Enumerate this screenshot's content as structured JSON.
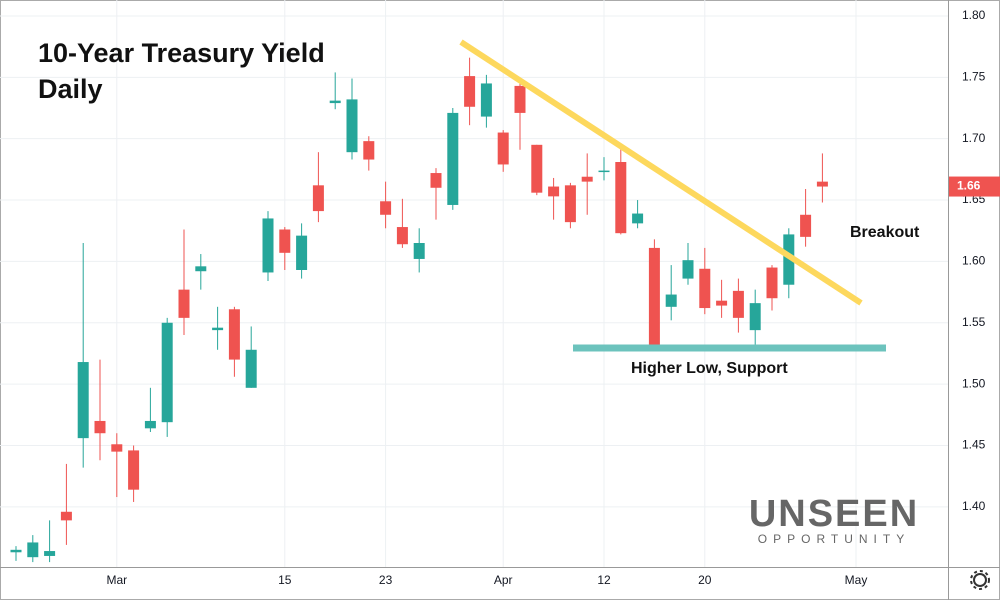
{
  "chart_data": {
    "type": "candlestick",
    "title": "10-Year Treasury Yield",
    "subtitle": "Daily",
    "annotations": [
      "Breakout",
      "Higher Low, Support"
    ],
    "last_label": "1.66",
    "up_color": "#26a69a",
    "down_color": "#ef5350",
    "grid": true,
    "categories": [
      null,
      null,
      null,
      null,
      null,
      null,
      "Mar",
      null,
      null,
      null,
      null,
      null,
      null,
      null,
      null,
      null,
      "15",
      null,
      null,
      null,
      null,
      null,
      "23",
      null,
      null,
      null,
      null,
      null,
      null,
      "Apr",
      null,
      null,
      null,
      null,
      null,
      "12",
      null,
      null,
      null,
      null,
      null,
      "20",
      null,
      null,
      null,
      null,
      null,
      null,
      null,
      null,
      "May"
    ],
    "open": [
      1.363,
      1.359,
      1.36,
      1.396,
      1.456,
      1.47,
      1.451,
      1.446,
      1.464,
      1.469,
      1.577,
      1.592,
      1.544,
      1.561,
      1.497,
      1.591,
      1.626,
      1.593,
      1.662,
      1.729,
      1.689,
      1.698,
      1.649,
      1.628,
      1.602,
      1.672,
      1.646,
      1.751,
      1.718,
      1.705,
      1.743,
      1.695,
      1.661,
      1.662,
      1.669,
      1.673,
      1.681,
      1.631,
      1.611,
      1.563,
      1.586,
      1.594,
      1.568,
      1.576,
      1.544,
      1.595,
      1.581,
      1.638,
      1.665,
      null,
      null
    ],
    "high": [
      1.368,
      1.377,
      1.389,
      1.435,
      1.615,
      1.52,
      1.46,
      1.45,
      1.497,
      1.554,
      1.626,
      1.606,
      1.563,
      1.563,
      1.547,
      1.641,
      1.628,
      1.631,
      1.689,
      1.754,
      1.749,
      1.702,
      1.665,
      1.651,
      1.627,
      1.676,
      1.725,
      1.766,
      1.752,
      1.707,
      1.746,
      1.695,
      1.668,
      1.664,
      1.688,
      1.685,
      1.695,
      1.65,
      1.618,
      1.597,
      1.615,
      1.611,
      1.585,
      1.586,
      1.577,
      1.597,
      1.627,
      1.659,
      1.688,
      null,
      null
    ],
    "low": [
      1.356,
      1.355,
      1.355,
      1.369,
      1.432,
      1.438,
      1.408,
      1.404,
      1.461,
      1.457,
      1.54,
      1.577,
      1.528,
      1.506,
      1.497,
      1.584,
      1.593,
      1.586,
      1.632,
      1.724,
      1.683,
      1.674,
      1.627,
      1.611,
      1.591,
      1.634,
      1.642,
      1.711,
      1.709,
      1.673,
      1.691,
      1.654,
      1.634,
      1.627,
      1.638,
      1.666,
      1.622,
      1.627,
      1.528,
      1.552,
      1.581,
      1.557,
      1.554,
      1.542,
      1.532,
      1.56,
      1.57,
      1.612,
      1.648,
      null,
      null
    ],
    "close": [
      1.365,
      1.371,
      1.364,
      1.389,
      1.518,
      1.46,
      1.445,
      1.414,
      1.47,
      1.55,
      1.554,
      1.596,
      1.546,
      1.52,
      1.528,
      1.635,
      1.607,
      1.621,
      1.641,
      1.731,
      1.732,
      1.683,
      1.638,
      1.614,
      1.615,
      1.66,
      1.721,
      1.726,
      1.745,
      1.679,
      1.721,
      1.656,
      1.653,
      1.632,
      1.665,
      1.674,
      1.623,
      1.639,
      1.529,
      1.573,
      1.601,
      1.562,
      1.564,
      1.554,
      1.566,
      1.57,
      1.622,
      1.62,
      1.661,
      null,
      null
    ],
    "ylim": [
      1.351,
      1.813
    ],
    "yticks": [
      {
        "value": 1.4,
        "label": "1.40"
      },
      1.45,
      {
        "value": 1.5,
        "label": "1.50"
      },
      1.55,
      {
        "value": 1.6,
        "label": "1.60"
      },
      1.65,
      {
        "value": 1.7,
        "label": "1.70"
      },
      1.75,
      {
        "value": 1.8,
        "label": "1.80"
      }
    ]
  },
  "logo": {
    "name": "UNSEEN",
    "tagline": "OPPORTUNITY"
  }
}
